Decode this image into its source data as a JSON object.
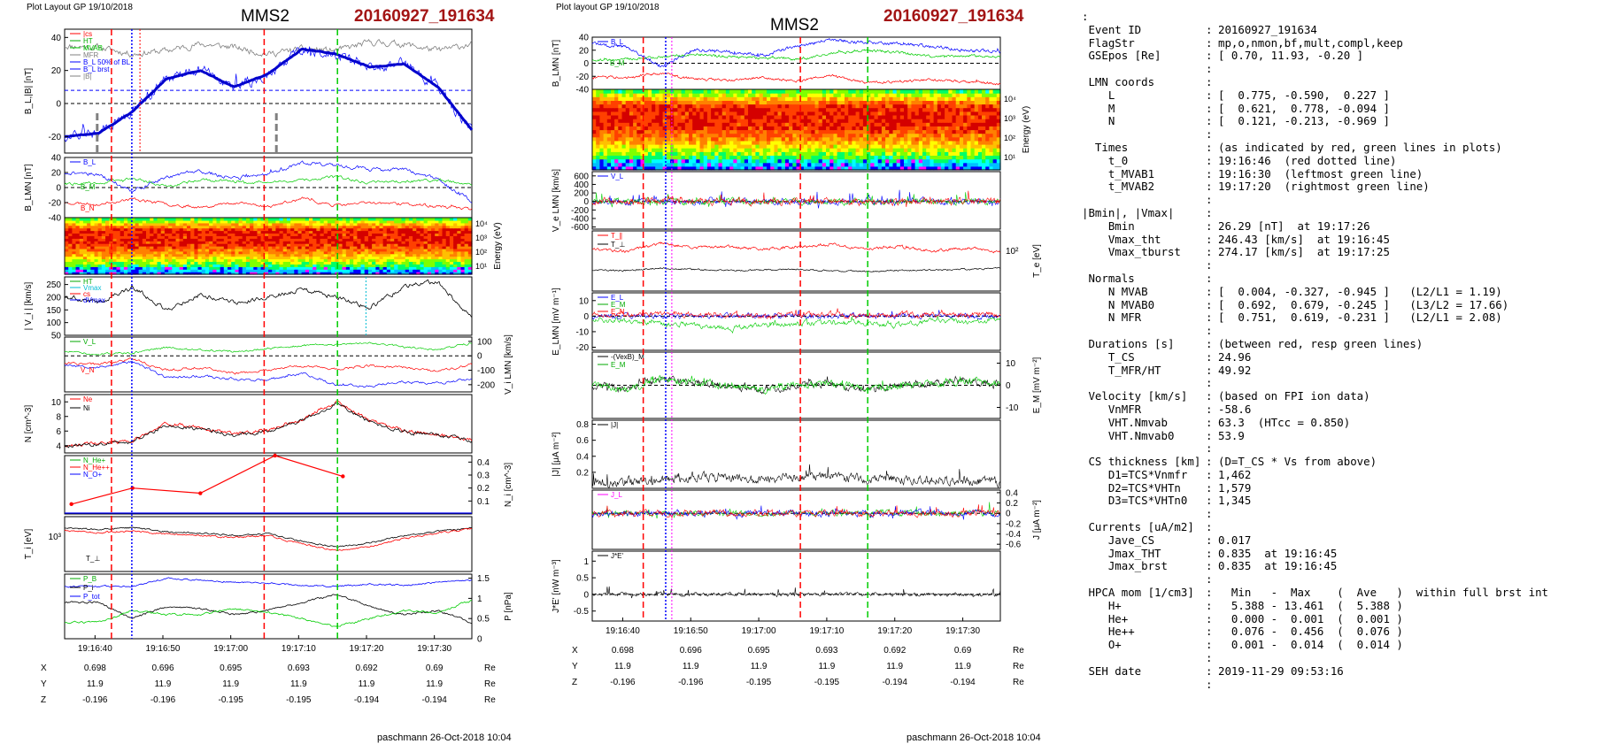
{
  "left": {
    "header_left": "Plot Layout GP 19/10/2018",
    "title": "MMS2",
    "date": "20160927_191634",
    "footer": "paschmann 26-Oct-2018 10:04",
    "time_ticks": [
      "19:16:40",
      "19:16:50",
      "19:17:00",
      "19:17:10",
      "19:17:20",
      "19:17:30"
    ],
    "pos_rows": [
      {
        "label": "X",
        "values": [
          "0.698",
          "0.696",
          "0.695",
          "0.693",
          "0.692",
          "0.69"
        ],
        "unit": "Re"
      },
      {
        "label": "Y",
        "values": [
          "11.9",
          "11.9",
          "11.9",
          "11.9",
          "11.9",
          "11.9"
        ],
        "unit": "Re"
      },
      {
        "label": "Z",
        "values": [
          "-0.196",
          "-0.196",
          "-0.195",
          "-0.195",
          "-0.194",
          "-0.194"
        ],
        "unit": "Re"
      }
    ]
  },
  "middle": {
    "header_left": "Plot layout GP 19/10/2018",
    "title": "MMS2",
    "date": "20160927_191634",
    "footer": "paschmann 26-Oct-2018 10:04",
    "time_ticks": [
      "19:16:40",
      "19:16:50",
      "19:17:00",
      "19:17:10",
      "19:17:20",
      "19:17:30"
    ],
    "pos_rows": [
      {
        "label": "X",
        "values": [
          "0.698",
          "0.696",
          "0.695",
          "0.693",
          "0.692",
          "0.69"
        ],
        "unit": "Re"
      },
      {
        "label": "Y",
        "values": [
          "11.9",
          "11.9",
          "11.9",
          "11.9",
          "11.9",
          "11.9"
        ],
        "unit": "Re"
      },
      {
        "label": "Z",
        "values": [
          "-0.196",
          "-0.196",
          "-0.195",
          "-0.195",
          "-0.194",
          "-0.194"
        ],
        "unit": "Re"
      }
    ]
  },
  "info": {
    "lines": [
      {
        "k": ":",
        "c": "",
        "v": ""
      },
      {
        "k": " Event ID",
        "c": ":",
        "v": "20160927_191634"
      },
      {
        "k": " FlagStr",
        "c": ":",
        "v": "mp,o,nmon,bf,mult,compl,keep"
      },
      {
        "k": " GSEpos [Re]",
        "c": ":",
        "v": "[ 0.70, 11.93, -0.20 ]"
      },
      {
        "k": "",
        "c": ":",
        "v": ""
      },
      {
        "k": " LMN coords",
        "c": ":",
        "v": ""
      },
      {
        "k": "    L",
        "c": ":",
        "v": "[  0.775, -0.590,  0.227 ]"
      },
      {
        "k": "    M",
        "c": ":",
        "v": "[  0.621,  0.778, -0.094 ]"
      },
      {
        "k": "    N",
        "c": ":",
        "v": "[  0.121, -0.213, -0.969 ]"
      },
      {
        "k": "",
        "c": ":",
        "v": ""
      },
      {
        "k": "  Times",
        "c": ":",
        "v": "(as indicated by red, green lines in plots)"
      },
      {
        "k": "    t_0",
        "c": ":",
        "v": "19:16:46  (red dotted line)"
      },
      {
        "k": "    t_MVAB1",
        "c": ":",
        "v": "19:16:30  (leftmost green line)"
      },
      {
        "k": "    t_MVAB2",
        "c": ":",
        "v": "19:17:20  (rightmost green line)"
      },
      {
        "k": "",
        "c": ":",
        "v": ""
      },
      {
        "k": "|Bmin|, |Vmax|",
        "c": ":",
        "v": ""
      },
      {
        "k": "    Bmin",
        "c": ":",
        "v": "26.29 [nT]  at 19:17:26"
      },
      {
        "k": "    Vmax_tht",
        "c": ":",
        "v": "246.43 [km/s]  at 19:16:45"
      },
      {
        "k": "    Vmax_tburst",
        "c": ":",
        "v": "274.17 [km/s]  at 19:17:25"
      },
      {
        "k": "",
        "c": ":",
        "v": ""
      },
      {
        "k": " Normals",
        "c": ":",
        "v": ""
      },
      {
        "k": "    N MVAB",
        "c": ":",
        "v": "[  0.004, -0.327, -0.945 ]   (L2/L1 = 1.19)"
      },
      {
        "k": "    N MVAB0",
        "c": ":",
        "v": "[  0.692,  0.679, -0.245 ]   (L3/L2 = 17.66)"
      },
      {
        "k": "    N MFR",
        "c": ":",
        "v": "[  0.751,  0.619, -0.231 ]   (L2/L1 = 2.08)"
      },
      {
        "k": "",
        "c": ":",
        "v": ""
      },
      {
        "k": " Durations [s]",
        "c": ":",
        "v": "(between red, resp green lines)"
      },
      {
        "k": "    T_CS",
        "c": ":",
        "v": "24.96"
      },
      {
        "k": "    T_MFR/HT",
        "c": ":",
        "v": "49.92"
      },
      {
        "k": "",
        "c": ":",
        "v": ""
      },
      {
        "k": " Velocity [km/s]",
        "c": ":",
        "v": "(based on FPI ion data)"
      },
      {
        "k": "    VnMFR",
        "c": ":",
        "v": "-58.6"
      },
      {
        "k": "    VHT.Nmvab",
        "c": ":",
        "v": "63.3  (HTcc = 0.850)"
      },
      {
        "k": "    VHT.Nmvab0",
        "c": ":",
        "v": "53.9"
      },
      {
        "k": "",
        "c": ":",
        "v": ""
      },
      {
        "k": " CS thickness [km]",
        "c": ":",
        "v": "(D=T_CS * Vs from above)"
      },
      {
        "k": "    D1=TCS*Vnmfr",
        "c": ":",
        "v": "1,462"
      },
      {
        "k": "    D2=TCS*VHTn",
        "c": ":",
        "v": "1,579"
      },
      {
        "k": "    D3=TCS*VHTn0",
        "c": ":",
        "v": "1,345"
      },
      {
        "k": "",
        "c": ":",
        "v": ""
      },
      {
        "k": " Currents [uA/m2]",
        "c": ":",
        "v": ""
      },
      {
        "k": "    Jave_CS",
        "c": ":",
        "v": "0.017"
      },
      {
        "k": "    Jmax_THT",
        "c": ":",
        "v": "0.835  at 19:16:45"
      },
      {
        "k": "    Jmax_brst",
        "c": ":",
        "v": "0.835  at 19:16:45"
      },
      {
        "k": "",
        "c": ":",
        "v": ""
      },
      {
        "k": " HPCA mom [1/cm3]",
        "c": ":",
        "v": "  Min   -  Max    (  Ave   )  within full brst int"
      },
      {
        "k": "    H+",
        "c": ":",
        "v": "  5.388 - 13.461  (  5.388 )"
      },
      {
        "k": "    He+",
        "c": ":",
        "v": "  0.000 -  0.001  (  0.001 )"
      },
      {
        "k": "    He++",
        "c": ":",
        "v": "  0.076 -  0.456  (  0.076 )"
      },
      {
        "k": "    O+",
        "c": ":",
        "v": "  0.001 -  0.014  (  0.014 )"
      },
      {
        "k": "",
        "c": ":",
        "v": ""
      },
      {
        "k": " SEH date",
        "c": ":",
        "v": "2019-11-29 09:53:16"
      },
      {
        "k": "",
        "c": ":",
        "v": ""
      }
    ]
  },
  "colors": {
    "red": "#ff0000",
    "green": "#00cc00",
    "blue": "#0000ff",
    "black": "#000000",
    "grey": "#808080",
    "magenta": "#ff00ff",
    "cyan": "#00bcd4",
    "darkred": "#a31515"
  },
  "chart_data": [
    {
      "type": "line",
      "panel": "left-B",
      "ylabel": "B_L,|B| [nT]",
      "ylim": [
        -30,
        45
      ],
      "yticks": [
        -20,
        0,
        20,
        40
      ],
      "legend": [
        "|B|",
        "B_L",
        "B_L (MVAB)",
        "B_L 50% of BL",
        "B_L brst",
        "|B|"
      ],
      "x": [
        0,
        5,
        10,
        15,
        20,
        25,
        30,
        35,
        40,
        45,
        50,
        55,
        60
      ],
      "series": [
        {
          "name": "B_L",
          "color": "#0000ff",
          "values": [
            -20,
            -18,
            -5,
            15,
            20,
            10,
            18,
            33,
            30,
            22,
            24,
            10,
            -16
          ]
        },
        {
          "name": "|B|",
          "color": "#808080",
          "values": [
            35,
            34,
            30,
            32,
            36,
            34,
            30,
            33,
            32,
            37,
            36,
            32,
            36
          ]
        }
      ],
      "annotation": "B_L 50% of BL"
    },
    {
      "type": "line",
      "panel": "left-BLMN",
      "ylabel": "B_LMN [nT]",
      "ylim": [
        -40,
        40
      ],
      "yticks": [
        -40,
        -20,
        0,
        20,
        40
      ],
      "legend": [
        "B_L",
        "B_M",
        "B_N"
      ]
    },
    {
      "type": "heatmap",
      "panel": "left-spectrogram",
      "ylabel": "Energy (eV)",
      "yticks": [
        "10^4",
        "10^3",
        "10^2",
        "10^1"
      ]
    },
    {
      "type": "line",
      "panel": "left-Vi",
      "ylabel": "| V_i | [km/s]",
      "ylim": [
        50,
        280
      ],
      "yticks": [
        50,
        100,
        150,
        200,
        250
      ],
      "legend": [
        "HT",
        "Vmax",
        "cs",
        "dVmax"
      ],
      "x": [
        0,
        5,
        10,
        15,
        20,
        25,
        30,
        35,
        40,
        45,
        50,
        55,
        60
      ],
      "series": [
        {
          "name": "|V|",
          "color": "#000000",
          "values": [
            200,
            180,
            240,
            150,
            210,
            180,
            200,
            230,
            200,
            160,
            240,
            260,
            120
          ]
        }
      ]
    },
    {
      "type": "line",
      "panel": "left-ViLMN",
      "ylabel": "V_i LMN [km/s]",
      "ylim": [
        -250,
        130
      ],
      "yticks": [
        100,
        0,
        -100,
        -200
      ],
      "legend": [
        "V_L",
        "V_M",
        "V_N"
      ]
    },
    {
      "type": "line",
      "panel": "left-N",
      "ylabel": "N [cm^-3]",
      "ylim": [
        3,
        11
      ],
      "yticks": [
        4,
        6,
        8,
        10
      ],
      "legend": [
        "Ne",
        "Ni"
      ],
      "x": [
        0,
        5,
        10,
        15,
        20,
        25,
        30,
        35,
        40,
        45,
        50,
        55,
        60
      ],
      "series": [
        {
          "name": "Ne",
          "color": "#ff0000",
          "values": [
            4,
            4.3,
            4.6,
            7,
            6.5,
            5.5,
            6.2,
            7.6,
            10,
            7.5,
            6,
            5.5,
            4.8
          ]
        },
        {
          "name": "Ni",
          "color": "#000000",
          "values": [
            4,
            4.2,
            4.5,
            6.8,
            6.3,
            5.4,
            6,
            7.4,
            9.8,
            7.3,
            5.9,
            5.4,
            4.7
          ]
        }
      ]
    },
    {
      "type": "line",
      "panel": "left-Nminor",
      "ylabel": "N_i [cm^-3]",
      "ylim": [
        0,
        0.45
      ],
      "yticks": [
        0.1,
        0.2,
        0.3,
        0.4
      ],
      "legend": [
        "N_He+",
        "N_He++",
        "N_O+"
      ],
      "x": [
        1,
        10,
        20,
        31,
        41
      ],
      "series": [
        {
          "name": "N_He++",
          "color": "#ff0000",
          "values": [
            0.076,
            0.2,
            0.16,
            0.45,
            0.29
          ]
        }
      ]
    },
    {
      "type": "line",
      "panel": "left-Ti",
      "ylabel": "T_i [eV]",
      "yticks": [
        "10^3"
      ],
      "legend": [
        "T_perp"
      ]
    },
    {
      "type": "line",
      "panel": "left-P",
      "ylabel": "P [nPa]",
      "ylim": [
        0,
        1.6
      ],
      "yticks": [
        0,
        0.5,
        1.0,
        1.5
      ],
      "legend": [
        "P_B",
        "P_i",
        "P_tot"
      ]
    },
    {
      "type": "line",
      "panel": "mid-BLMN",
      "ylabel": "B_LMN [nT]",
      "ylim": [
        -40,
        40
      ],
      "yticks": [
        -40,
        -20,
        0,
        20,
        40
      ],
      "legend": [
        "B_L",
        "B_M",
        "B_N"
      ]
    },
    {
      "type": "heatmap",
      "panel": "mid-spectrogram",
      "ylabel": "Energy (eV)",
      "yticks": [
        "10^4",
        "10^3",
        "10^2",
        "10^1"
      ]
    },
    {
      "type": "line",
      "panel": "mid-Ve",
      "ylabel": "V_e LMN [km/s]",
      "ylim": [
        -650,
        700
      ],
      "yticks": [
        -600,
        -400,
        -200,
        0,
        200,
        400,
        600
      ],
      "legend": [
        "V_L"
      ]
    },
    {
      "type": "line",
      "panel": "mid-Te",
      "ylabel": "T_e [eV]",
      "yticks": [
        "10^2"
      ],
      "legend": [
        "T_par",
        "T_perp"
      ]
    },
    {
      "type": "line",
      "panel": "mid-E",
      "ylabel": "E_LMN [mV m^-1]",
      "ylim": [
        -22,
        15
      ],
      "yticks": [
        -20,
        -10,
        0,
        10
      ],
      "legend": [
        "E_L",
        "E_M",
        "E_N"
      ]
    },
    {
      "type": "line",
      "panel": "mid-EM",
      "ylabel": "E_M [mV m^-1]",
      "ylim": [
        -15,
        15
      ],
      "yticks": [
        -10,
        0,
        10
      ],
      "legend": [
        "-(VexB)_M",
        "E_M"
      ]
    },
    {
      "type": "line",
      "panel": "mid-J",
      "ylabel": "|J| [μA m^-2]",
      "ylim": [
        0,
        0.85
      ],
      "yticks": [
        0.2,
        0.4,
        0.6,
        0.8
      ],
      "legend": [
        "|J|"
      ]
    },
    {
      "type": "line",
      "panel": "mid-JLMN",
      "ylabel": "J [μA m^-2]",
      "ylim": [
        -0.7,
        0.45
      ],
      "yticks": [
        -0.6,
        -0.4,
        -0.2,
        0.0,
        0.2,
        0.4
      ],
      "legend": [
        "J_L",
        "J_M",
        "J_N"
      ]
    },
    {
      "type": "line",
      "panel": "mid-JE",
      "ylabel": "J*E' [nW m^-3]",
      "ylim": [
        -0.8,
        1.3
      ],
      "yticks": [
        -0.5,
        0.0,
        0.5,
        1.0
      ],
      "legend": [
        "J*E'"
      ]
    }
  ]
}
